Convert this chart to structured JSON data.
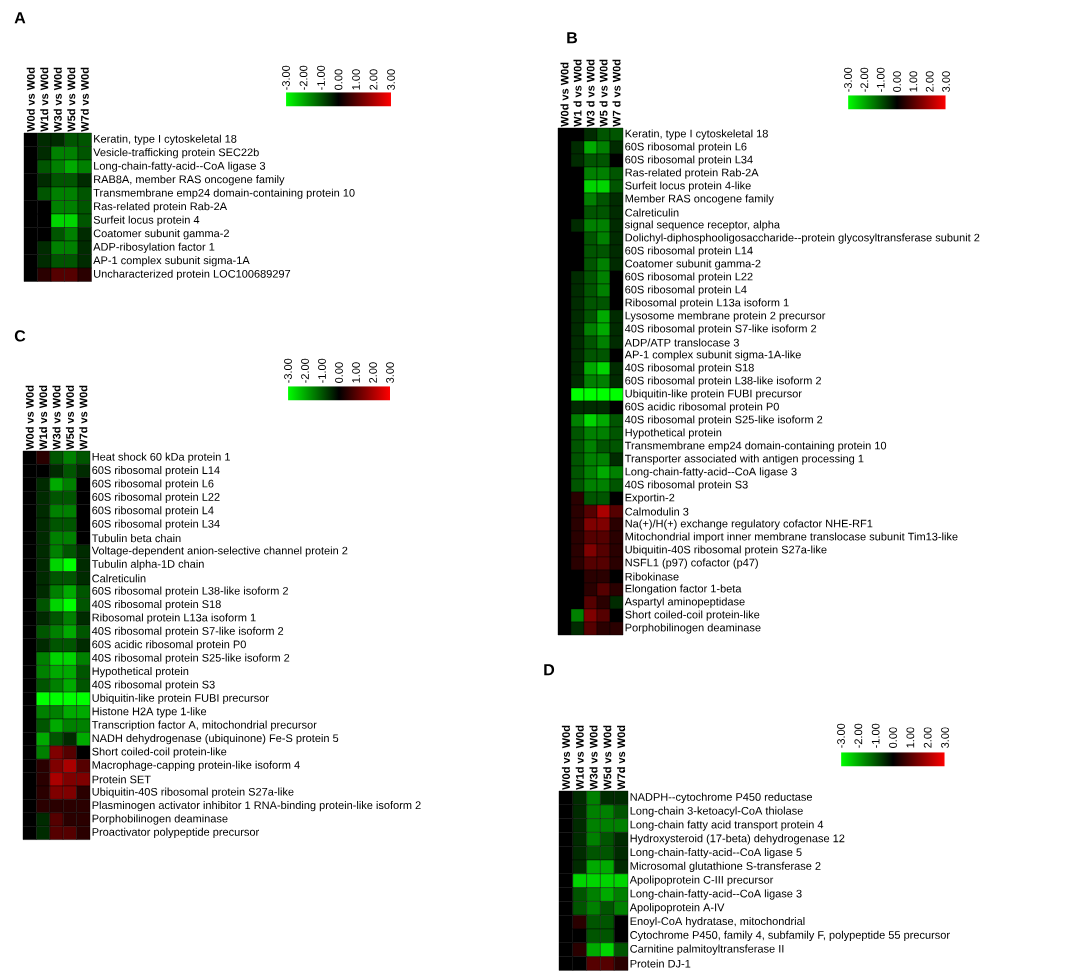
{
  "chart_data": [
    {
      "type": "heatmap",
      "title": "A",
      "categories": [
        "W0d vs W0d",
        "W1d vs W0d",
        "W3d vs W0d",
        "W5d vs W0d",
        "W7d vs W0d"
      ],
      "y_categories": [
        "Keratin, type I cytoskeletal 18",
        "Vesicle-trafficking protein SEC22b",
        "Long-chain-fatty-acid--CoA ligase 3",
        "RAB8A, member RAS oncogene family",
        "Transmembrane emp24 domain-containing protein 10",
        "Ras-related protein Rab-2A",
        "Surfeit locus protein 4",
        "Coatomer subunit gamma-2",
        "ADP-ribosylation factor 1",
        "AP-1 complex subunit sigma-1A",
        "Uncharacterized protein LOC100689297"
      ],
      "cells": [
        [
          0,
          -0.5,
          -0.5,
          -1,
          -1
        ],
        [
          0,
          -0.5,
          -1.5,
          -1.5,
          -1
        ],
        [
          0,
          -1,
          -1.5,
          -2,
          -1.5
        ],
        [
          0,
          -0.5,
          -1,
          -1,
          -0.5
        ],
        [
          0,
          -1,
          -1.5,
          -1.5,
          -1
        ],
        [
          0,
          0,
          -1.5,
          -1.5,
          -1
        ],
        [
          0,
          0,
          -2.5,
          -2.5,
          -1
        ],
        [
          0,
          0,
          -1,
          -1.5,
          -0.5
        ],
        [
          0,
          -0.5,
          -1.5,
          -1.5,
          -0.5
        ],
        [
          0,
          -0.5,
          -1,
          -1,
          -0.5
        ],
        [
          0,
          0.5,
          1,
          1,
          0.5
        ]
      ],
      "clim": [
        -3,
        3
      ],
      "cticks": [
        {
          "value": -3,
          "label": "-3.00"
        },
        {
          "value": -2,
          "label": "-2.00"
        },
        {
          "value": -1,
          "label": "-1.00"
        },
        {
          "value": 0,
          "label": "0.00"
        },
        {
          "value": 1,
          "label": "1.00"
        },
        {
          "value": 2,
          "label": "2.00"
        },
        {
          "value": 3,
          "label": "3.00"
        }
      ]
    },
    {
      "type": "heatmap",
      "title": "B",
      "categories": [
        "W0d vs W0d",
        "W1 d vs W0d",
        "W3 d vs W0d",
        "W5 d vs W0d",
        "W7 d vs W0d"
      ],
      "y_categories": [
        "Keratin, type I cytoskeletal 18",
        "60S ribosomal protein L6",
        "60S ribosomal protein L34",
        "Ras-related protein Rab-2A",
        "Surfeit locus protein 4-like",
        "Member RAS oncogene family",
        "Calreticulin",
        "signal sequence receptor, alpha",
        "Dolichyl-diphosphooligosaccharide--protein glycosyltransferase subunit 2",
        "60S ribosomal protein L14",
        "Coatomer subunit gamma-2",
        "60S ribosomal protein L22",
        "60S ribosomal protein L4",
        "Ribosomal protein L13a isoform 1",
        "Lysosome membrane protein 2 precursor",
        "40S ribosomal protein S7-like isoform 2",
        "ADP/ATP translocase 3",
        "AP-1 complex subunit sigma-1A-like",
        "40S ribosomal protein S18",
        "60S ribosomal protein L38-like isoform 2",
        "Ubiquitin-like protein FUBI precursor",
        "60S acidic ribosomal protein P0",
        "40S ribosomal protein S25-like isoform 2",
        "Hypothetical protein",
        "Transmembrane emp24 domain-containing protein 10",
        "Transporter associated with antigen processing 1",
        "Long-chain-fatty-acid--CoA ligase 3",
        "40S ribosomal protein S3",
        "Exportin-2",
        "Calmodulin 3",
        "Na(+)/H(+) exchange regulatory cofactor NHE-RF1",
        "Mitochondrial import inner membrane translocase subunit Tim13-like",
        "Ubiquitin-40S ribosomal protein S27a-like",
        "NSFL1 (p97) cofactor (p47)",
        "Ribokinase",
        "Elongation factor 1-beta",
        "Aspartyl aminopeptidase",
        "Short coiled-coil protein-like",
        "Porphobilinogen deaminase"
      ],
      "cells": [
        [
          0,
          0,
          -0.5,
          -1,
          -1
        ],
        [
          0,
          -0.5,
          -2,
          -1.5,
          -0.5
        ],
        [
          0,
          -0.5,
          -1,
          -1,
          0
        ],
        [
          0,
          0,
          -1.5,
          -1.5,
          -1
        ],
        [
          0,
          0,
          -2.5,
          -2.5,
          -1
        ],
        [
          0,
          0,
          -1.5,
          -1,
          -0.5
        ],
        [
          0,
          0,
          -1,
          -1,
          -0.5
        ],
        [
          0,
          -0.5,
          -1.5,
          -1.5,
          -0.5
        ],
        [
          0,
          0,
          -1,
          -1.5,
          -0.5
        ],
        [
          0,
          0,
          -1,
          -1,
          -0.5
        ],
        [
          0,
          0,
          -1,
          -1.5,
          -0.5
        ],
        [
          0,
          -0.5,
          -1,
          -1.5,
          0
        ],
        [
          0,
          -0.5,
          -1,
          -1.5,
          0
        ],
        [
          0,
          -0.5,
          -1,
          -1,
          0
        ],
        [
          0,
          -0.5,
          -1,
          -2,
          -0.5
        ],
        [
          0,
          -0.5,
          -1.5,
          -2,
          -0.5
        ],
        [
          0,
          -0.5,
          -1,
          -1.5,
          -0.5
        ],
        [
          0,
          -0.5,
          -1,
          -1,
          0
        ],
        [
          0,
          -0.5,
          -2,
          -2.5,
          -0.5
        ],
        [
          0,
          -0.5,
          -1.5,
          -1.5,
          -0.5
        ],
        [
          0,
          -3,
          -3,
          -3,
          -3
        ],
        [
          0,
          -0.5,
          -0.5,
          -0.5,
          0
        ],
        [
          0,
          -1.5,
          -2.5,
          -2,
          -1
        ],
        [
          0,
          -1,
          -1.5,
          -1.5,
          -1
        ],
        [
          0,
          -1,
          -1.5,
          -1,
          -1
        ],
        [
          0,
          -1,
          -1.5,
          -1.5,
          -0.5
        ],
        [
          0,
          -1,
          -1.5,
          -2,
          -1.5
        ],
        [
          0,
          -1,
          -1.5,
          -1.5,
          -1
        ],
        [
          0,
          0.5,
          -1,
          -1,
          0
        ],
        [
          0,
          0.5,
          1,
          2,
          1
        ],
        [
          0,
          0.5,
          1.5,
          1.5,
          0.5
        ],
        [
          0,
          0.5,
          1,
          1,
          0.5
        ],
        [
          0,
          0.5,
          1.5,
          1,
          0.5
        ],
        [
          0,
          0.5,
          1,
          1,
          0.5
        ],
        [
          0,
          0,
          0.5,
          0.5,
          0
        ],
        [
          0,
          0,
          0.5,
          1,
          0.5
        ],
        [
          0,
          0,
          1,
          0.5,
          -0.5
        ],
        [
          0,
          -1.5,
          1.5,
          1,
          0
        ],
        [
          0,
          -0.5,
          1,
          0.5,
          0.5
        ]
      ],
      "clim": [
        -3,
        3
      ],
      "cticks": [
        {
          "value": -3,
          "label": "-3.00"
        },
        {
          "value": -2,
          "label": "-2.00"
        },
        {
          "value": -1,
          "label": "-1.00"
        },
        {
          "value": 0,
          "label": "0.00"
        },
        {
          "value": 1,
          "label": "1.00"
        },
        {
          "value": 2,
          "label": "2.00"
        },
        {
          "value": 3,
          "label": "3.00"
        }
      ]
    },
    {
      "type": "heatmap",
      "title": "C",
      "categories": [
        "W0d vs W0d",
        "W1d vs W0d",
        "W3d vs W0d",
        "W5d vs W0d",
        "W7d vs W0d"
      ],
      "y_categories": [
        "Heat shock 60 kDa protein 1",
        "60S ribosomal protein L14",
        "60S ribosomal protein L6",
        "60S ribosomal protein L22",
        "60S ribosomal protein L4",
        "60S ribosomal protein L34",
        "Tubulin beta chain",
        "Voltage-dependent anion-selective channel protein 2",
        "Tubulin alpha-1D chain",
        "Calreticulin",
        "60S ribosomal protein L38-like isoform 2",
        "40S ribosomal protein S18",
        "Ribosomal protein L13a isoform 1",
        "40S ribosomal protein S7-like isoform 2",
        "60S acidic ribosomal protein P0",
        "40S ribosomal protein S25-like isoform 2",
        "Hypothetical protein",
        "40S ribosomal protein S3",
        "Ubiquitin-like protein FUBI precursor",
        "Histone H2A type 1-like",
        "Transcription factor A, mitochondrial precursor",
        "NADH dehydrogenase (ubiquinone) Fe-S protein 5",
        "Short coiled-coil protein-like",
        "Macrophage-capping protein-like isoform 4",
        "Protein SET",
        "Ubiquitin-40S ribosomal protein S27a-like",
        "Plasminogen activator inhibitor 1 RNA-binding protein-like isoform 2",
        "Porphobilinogen deaminase",
        "Proactivator polypeptide precursor"
      ],
      "cells": [
        [
          0,
          0.5,
          -1,
          -1.5,
          -1
        ],
        [
          0,
          0,
          -0.5,
          -1,
          -0.5
        ],
        [
          0,
          -0.5,
          -2,
          -1.5,
          0
        ],
        [
          0,
          -0.5,
          -1,
          -1,
          0
        ],
        [
          0,
          -0.5,
          -1.5,
          -1.5,
          0
        ],
        [
          0,
          -0.5,
          -1,
          -1,
          0
        ],
        [
          0,
          -0.5,
          -1.5,
          -1.5,
          0
        ],
        [
          0,
          -0.5,
          -1.5,
          -1,
          -0.5
        ],
        [
          0,
          -0.5,
          -2.5,
          -3,
          -0.5
        ],
        [
          0,
          -0.5,
          -1,
          -1,
          -0.5
        ],
        [
          0,
          -0.5,
          -1.5,
          -2,
          -1
        ],
        [
          0,
          -1,
          -2.5,
          -3,
          -1
        ],
        [
          0,
          -0.5,
          -1,
          -1.5,
          -0.5
        ],
        [
          0,
          -1,
          -1.5,
          -2,
          -1
        ],
        [
          0,
          -0.5,
          -1,
          -1,
          -0.5
        ],
        [
          0,
          -1.5,
          -2.5,
          -2.5,
          -1.5
        ],
        [
          0,
          -1.5,
          -2,
          -2,
          -1
        ],
        [
          0,
          -1,
          -1.5,
          -2,
          -1
        ],
        [
          0,
          -3,
          -3,
          -3,
          -3
        ],
        [
          0,
          -1.5,
          -1.5,
          -2,
          -2
        ],
        [
          0,
          -1,
          -2,
          -1.5,
          -1.5
        ],
        [
          0,
          -2,
          -1,
          -0.5,
          -2
        ],
        [
          0,
          -1.5,
          1.5,
          1,
          0
        ],
        [
          0,
          0.5,
          1.5,
          2,
          1
        ],
        [
          0,
          0.5,
          2,
          1.5,
          1.5
        ],
        [
          0,
          0.5,
          1.5,
          1.5,
          0.5
        ],
        [
          0,
          0.5,
          0.5,
          0.5,
          0.5
        ],
        [
          0,
          -0.5,
          1,
          0.5,
          0.5
        ],
        [
          0,
          -0.5,
          1,
          1,
          0.5
        ]
      ],
      "clim": [
        -3,
        3
      ],
      "cticks": [
        {
          "value": -3,
          "label": "-3.00"
        },
        {
          "value": -2,
          "label": "-2.00"
        },
        {
          "value": -1,
          "label": "-1.00"
        },
        {
          "value": 0,
          "label": "0.00"
        },
        {
          "value": 1,
          "label": "1.00"
        },
        {
          "value": 2,
          "label": "2.00"
        },
        {
          "value": 3,
          "label": "3.00"
        }
      ]
    },
    {
      "type": "heatmap",
      "title": "D",
      "categories": [
        "W0d vs W0d",
        "W1d vs W0d",
        "W3d vs W0d",
        "W5d vs W0d",
        "W7d vs W0d"
      ],
      "y_categories": [
        "NADPH--cytochrome P450 reductase",
        "Long-chain 3-ketoacyl-CoA thiolase",
        "Long-chain fatty acid transport protein 4",
        "Hydroxysteroid (17-beta) dehydrogenase 12",
        "Long-chain-fatty-acid--CoA ligase 5",
        "Microsomal glutathione S-transferase 2",
        "Apolipoprotein C-III precursor",
        "Long-chain-fatty-acid--CoA ligase 3",
        "Apolipoprotein A-IV",
        "Enoyl-CoA hydratase, mitochondrial",
        "Cytochrome P450, family 4, subfamily F, polypeptide 55 precursor",
        "Carnitine palmitoyltransferase II",
        "Protein DJ-1"
      ],
      "cells": [
        [
          0,
          -0.5,
          -1.5,
          -0.5,
          -0.5
        ],
        [
          0,
          -0.5,
          -1.5,
          -1.5,
          -1
        ],
        [
          0,
          -0.5,
          -1.5,
          -1.5,
          -1.5
        ],
        [
          0,
          -0.5,
          -1.5,
          -1,
          -0.5
        ],
        [
          0,
          -0.5,
          -1,
          -1,
          -0.5
        ],
        [
          0,
          -0.5,
          -2,
          -2,
          -0.5
        ],
        [
          0,
          -2.5,
          -2.5,
          -2.5,
          -2.5
        ],
        [
          0,
          -1,
          -1.5,
          -2,
          -1.5
        ],
        [
          0,
          -1,
          -1.5,
          -1,
          -1.5
        ],
        [
          0,
          0.5,
          -1,
          -1,
          0
        ],
        [
          0,
          0,
          -1,
          -1,
          0
        ],
        [
          0,
          0.5,
          -2,
          -2.5,
          -1
        ],
        [
          0,
          0,
          1,
          1,
          0.5
        ]
      ],
      "clim": [
        -3,
        3
      ],
      "cticks": [
        {
          "value": -3,
          "label": "-3.00"
        },
        {
          "value": -2,
          "label": "-2.00"
        },
        {
          "value": -1,
          "label": "-1.00"
        },
        {
          "value": 0,
          "label": "0.00"
        },
        {
          "value": 1,
          "label": "1.00"
        },
        {
          "value": 2,
          "label": "2.00"
        },
        {
          "value": 3,
          "label": "3.00"
        }
      ]
    }
  ]
}
